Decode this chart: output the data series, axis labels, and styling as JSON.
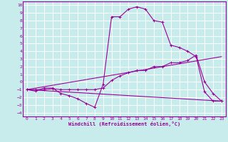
{
  "xlabel": "Windchill (Refroidissement éolien,°C)",
  "background_color": "#c8ecec",
  "grid_color": "#ffffff",
  "line_color": "#990099",
  "xlim": [
    -0.5,
    23.5
  ],
  "ylim": [
    -4.5,
    10.5
  ],
  "xticks": [
    0,
    1,
    2,
    3,
    4,
    5,
    6,
    7,
    8,
    9,
    10,
    11,
    12,
    13,
    14,
    15,
    16,
    17,
    18,
    19,
    20,
    21,
    22,
    23
  ],
  "yticks": [
    -4,
    -3,
    -2,
    -1,
    0,
    1,
    2,
    3,
    4,
    5,
    6,
    7,
    8,
    9,
    10
  ],
  "curve1_x": [
    0,
    1,
    2,
    3,
    4,
    5,
    6,
    7,
    8,
    9,
    10,
    11,
    12,
    13,
    14,
    15,
    16,
    17,
    18,
    19,
    20,
    21,
    22,
    23
  ],
  "curve1_y": [
    -1,
    -1.2,
    -0.8,
    -0.8,
    -1.5,
    -1.8,
    -2.2,
    -2.8,
    -3.3,
    -0.3,
    8.5,
    8.5,
    9.5,
    9.8,
    9.5,
    8,
    7.8,
    4.8,
    4.5,
    4,
    3.3,
    -1.3,
    -2.5,
    -2.5
  ],
  "curve2_x": [
    0,
    1,
    2,
    3,
    4,
    5,
    6,
    7,
    8,
    9,
    10,
    11,
    12,
    13,
    14,
    15,
    16,
    17,
    18,
    19,
    20,
    21,
    22,
    23
  ],
  "curve2_y": [
    -1,
    -1,
    -1,
    -0.9,
    -1,
    -1,
    -1,
    -1,
    -1,
    -0.8,
    0.2,
    0.8,
    1.2,
    1.5,
    1.5,
    2,
    2,
    2.5,
    2.5,
    2.8,
    3.5,
    0,
    -1.5,
    -2.5
  ],
  "curve3_x": [
    0,
    23
  ],
  "curve3_y": [
    -1.0,
    -2.5
  ],
  "curve4_x": [
    0,
    23
  ],
  "curve4_y": [
    -1.0,
    3.3
  ]
}
